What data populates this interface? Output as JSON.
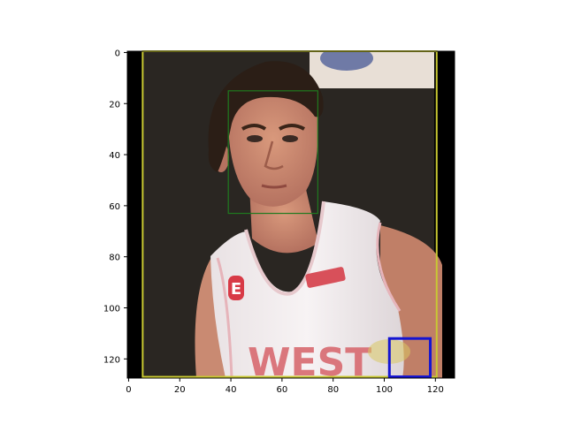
{
  "chart_data": {
    "type": "image",
    "title": "",
    "xlabel": "",
    "ylabel": "",
    "image_size": [
      128,
      128
    ],
    "xlim": [
      -0.5,
      127.5
    ],
    "ylim": [
      127.5,
      -0.5
    ],
    "xticks": [
      0,
      20,
      40,
      60,
      80,
      100,
      120
    ],
    "yticks": [
      0,
      20,
      40,
      60,
      80,
      100,
      120
    ],
    "grid": false,
    "boxes": [
      {
        "label": "frame",
        "x0": 5.5,
        "y0": -0.5,
        "x1": 120.5,
        "y1": 127,
        "color": "#c8c832"
      },
      {
        "label": "face",
        "x0": 39,
        "y0": 15,
        "x1": 74,
        "y1": 63,
        "color": "#1f7a1f"
      },
      {
        "label": "marker",
        "x0": 102,
        "y0": 112,
        "x1": 118,
        "y1": 127,
        "color": "#1414d2"
      }
    ],
    "image_text": {
      "logo": "E",
      "jersey": "WEST"
    }
  },
  "colors": {
    "background": "#2a2622",
    "jersey": "#f2eced",
    "jersey_trim": "#d8505a",
    "skin": "#c7876e",
    "hair": "#2b1e16",
    "letterbox": "#000000"
  }
}
